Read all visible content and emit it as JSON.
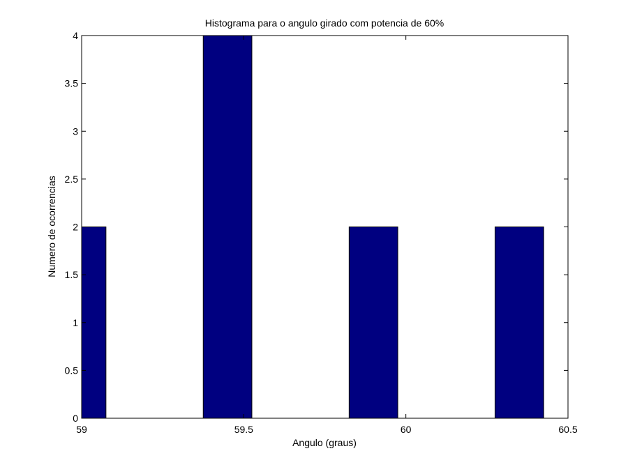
{
  "chart_data": {
    "type": "bar",
    "title": "Histograma para o angulo girado com potencia de 60%",
    "xlabel": "Angulo (graus)",
    "ylabel": "Numero de ocorrencias",
    "xlim": [
      59,
      60.5
    ],
    "ylim": [
      0,
      4
    ],
    "xticks": [
      59,
      59.5,
      60,
      60.5
    ],
    "xtick_labels": [
      "59",
      "59.5",
      "60",
      "60.5"
    ],
    "yticks": [
      0,
      0.5,
      1,
      1.5,
      2,
      2.5,
      3,
      3.5,
      4
    ],
    "ytick_labels": [
      "0",
      "0.5",
      "1",
      "1.5",
      "2",
      "2.5",
      "3",
      "3.5",
      "4"
    ],
    "bins": [
      {
        "x0": 58.925,
        "x1": 59.075,
        "value": 2
      },
      {
        "x0": 59.075,
        "x1": 59.225,
        "value": 0
      },
      {
        "x0": 59.375,
        "x1": 59.525,
        "value": 4
      },
      {
        "x0": 59.525,
        "x1": 59.675,
        "value": 0
      },
      {
        "x0": 59.825,
        "x1": 59.975,
        "value": 2
      },
      {
        "x0": 59.975,
        "x1": 60.125,
        "value": 0
      },
      {
        "x0": 60.275,
        "x1": 60.425,
        "value": 2
      },
      {
        "x0": 60.425,
        "x1": 60.575,
        "value": 0
      }
    ],
    "bar_color": "#000080",
    "grid": false,
    "legend": "none"
  }
}
